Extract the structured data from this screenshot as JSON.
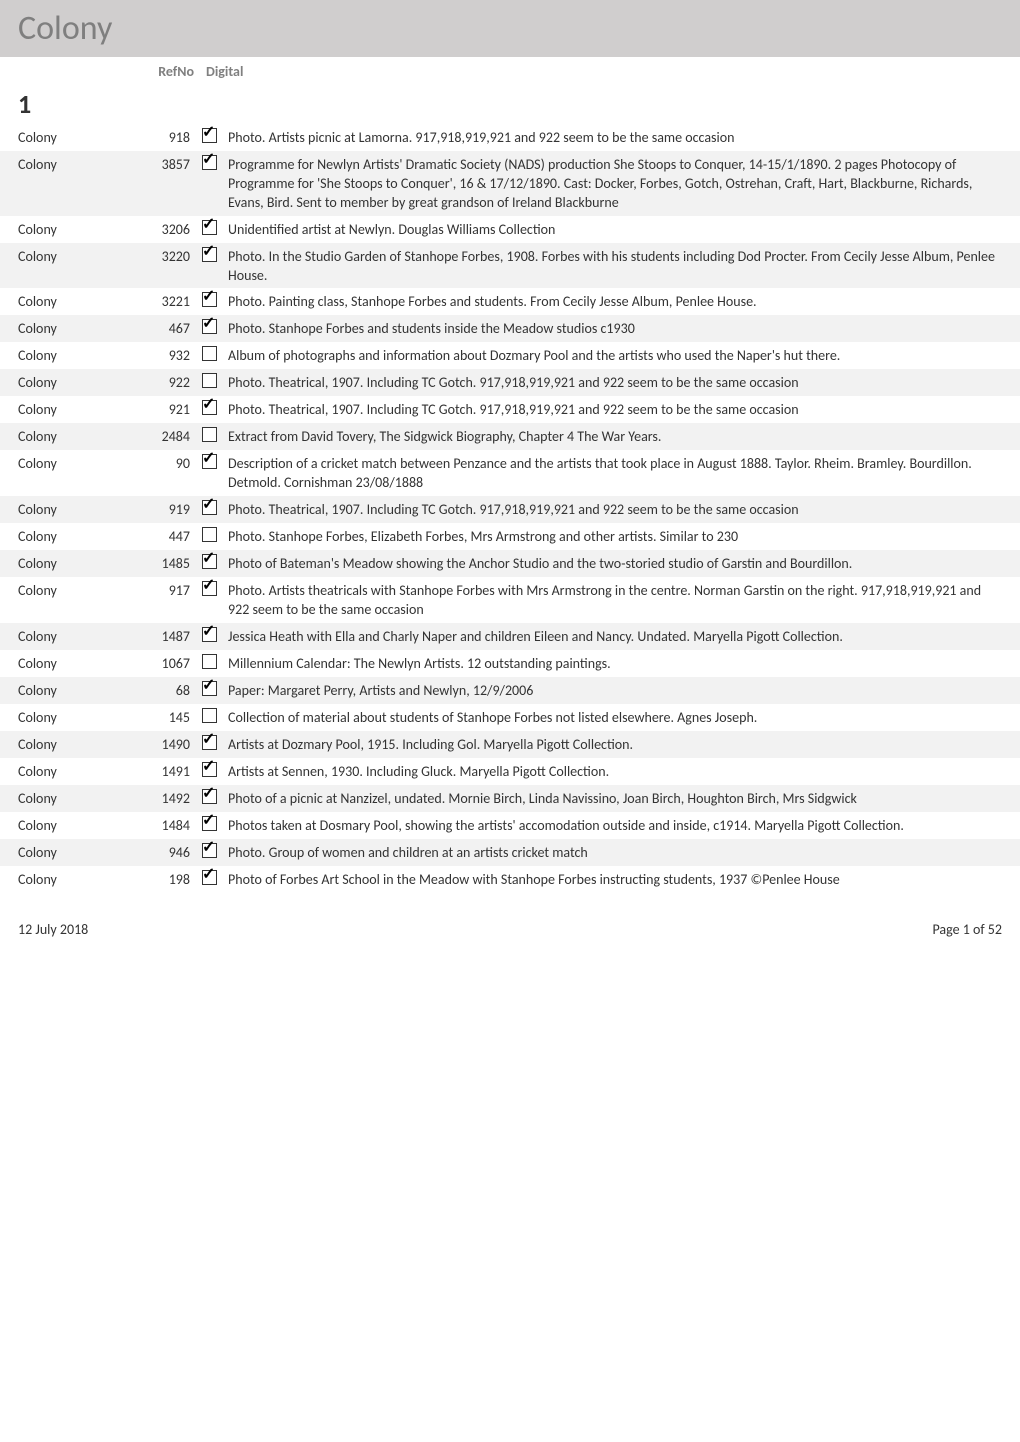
{
  "header": {
    "title": "Colony"
  },
  "columns": {
    "refno": "RefNo",
    "digital": "Digital"
  },
  "section": "1",
  "rows": [
    {
      "label": "Colony",
      "ref": "918",
      "checked": true,
      "alt": false,
      "desc": "Photo. Artists picnic at Lamorna. 917,918,919,921 and 922 seem to be the same occasion"
    },
    {
      "label": "Colony",
      "ref": "3857",
      "checked": true,
      "alt": true,
      "desc": "Programme for Newlyn Artists' Dramatic Society (NADS) production She Stoops to Conquer, 14-15/1/1890. 2 pages Photocopy of Programme for 'She Stoops to Conquer', 16 & 17/12/1890. Cast: Docker, Forbes, Gotch, Ostrehan, Craft, Hart, Blackburne, Richards, Evans, Bird. Sent to member by great grandson of Ireland Blackburne"
    },
    {
      "label": "Colony",
      "ref": "3206",
      "checked": true,
      "alt": false,
      "desc": "Unidentified artist at Newlyn. Douglas Williams Collection"
    },
    {
      "label": "Colony",
      "ref": "3220",
      "checked": true,
      "alt": true,
      "desc": "Photo. In the Studio Garden of Stanhope Forbes, 1908. Forbes with his students including Dod Procter. From Cecily Jesse Album, Penlee House."
    },
    {
      "label": "Colony",
      "ref": "3221",
      "checked": true,
      "alt": false,
      "desc": "Photo. Painting class, Stanhope Forbes and students. From Cecily Jesse Album, Penlee House."
    },
    {
      "label": "Colony",
      "ref": "467",
      "checked": true,
      "alt": true,
      "desc": "Photo. Stanhope Forbes and students inside the Meadow studios c1930"
    },
    {
      "label": "Colony",
      "ref": "932",
      "checked": false,
      "alt": false,
      "desc": "Album of photographs and information about Dozmary Pool and the artists who used the Naper's hut there."
    },
    {
      "label": "Colony",
      "ref": "922",
      "checked": false,
      "alt": true,
      "desc": "Photo. Theatrical, 1907. Including TC Gotch. 917,918,919,921 and 922 seem to be the same occasion"
    },
    {
      "label": "Colony",
      "ref": "921",
      "checked": true,
      "alt": false,
      "desc": "Photo. Theatrical, 1907. Including TC Gotch. 917,918,919,921 and 922 seem to be the same occasion"
    },
    {
      "label": "Colony",
      "ref": "2484",
      "checked": false,
      "alt": true,
      "desc": "Extract from David Tovery, The Sidgwick Biography, Chapter 4 The War Years."
    },
    {
      "label": "Colony",
      "ref": "90",
      "checked": true,
      "alt": false,
      "desc": "Description of a cricket match between Penzance and the artists that took place in August 1888. Taylor. Rheim. Bramley. Bourdillon. Detmold. Cornishman 23/08/1888"
    },
    {
      "label": "Colony",
      "ref": "919",
      "checked": true,
      "alt": true,
      "desc": "Photo. Theatrical, 1907. Including TC Gotch. 917,918,919,921 and 922 seem to be the same occasion"
    },
    {
      "label": "Colony",
      "ref": "447",
      "checked": false,
      "alt": false,
      "desc": "Photo. Stanhope Forbes, Elizabeth Forbes, Mrs Armstrong and other artists. Similar to 230"
    },
    {
      "label": "Colony",
      "ref": "1485",
      "checked": true,
      "alt": true,
      "desc": "Photo of Bateman's Meadow showing the Anchor Studio and the two-storied studio of Garstin and Bourdillon."
    },
    {
      "label": "Colony",
      "ref": "917",
      "checked": true,
      "alt": false,
      "desc": "Photo. Artists theatricals with Stanhope Forbes with Mrs Armstrong in the centre. Norman Garstin on the right. 917,918,919,921 and 922 seem to be the same occasion"
    },
    {
      "label": "Colony",
      "ref": "1487",
      "checked": true,
      "alt": true,
      "desc": "Jessica Heath with Ella and Charly Naper and children Eileen and Nancy. Undated. Maryella Pigott Collection."
    },
    {
      "label": "Colony",
      "ref": "1067",
      "checked": false,
      "alt": false,
      "desc": "Millennium Calendar: The Newlyn Artists. 12 outstanding paintings."
    },
    {
      "label": "Colony",
      "ref": "68",
      "checked": true,
      "alt": true,
      "desc": "Paper: Margaret Perry, Artists and Newlyn, 12/9/2006"
    },
    {
      "label": "Colony",
      "ref": "145",
      "checked": false,
      "alt": false,
      "desc": "Collection of material about students of Stanhope Forbes not listed elsewhere. Agnes Joseph."
    },
    {
      "label": "Colony",
      "ref": "1490",
      "checked": true,
      "alt": true,
      "desc": "Artists at Dozmary Pool, 1915. Including Gol. Maryella Pigott Collection."
    },
    {
      "label": "Colony",
      "ref": "1491",
      "checked": true,
      "alt": false,
      "desc": "Artists at Sennen, 1930. Including Gluck. Maryella Pigott Collection."
    },
    {
      "label": "Colony",
      "ref": "1492",
      "checked": true,
      "alt": true,
      "desc": "Photo of a picnic at Nanzizel, undated. Mornie Birch, Linda Navissino, Joan Birch, Houghton Birch, Mrs Sidgwick"
    },
    {
      "label": "Colony",
      "ref": "1484",
      "checked": true,
      "alt": false,
      "desc": "Photos taken at Dosmary Pool, showing the artists' accomodation outside and inside, c1914. Maryella Pigott Collection."
    },
    {
      "label": "Colony",
      "ref": "946",
      "checked": true,
      "alt": true,
      "desc": "Photo. Group of women and children at an artists cricket match"
    },
    {
      "label": "Colony",
      "ref": "198",
      "checked": true,
      "alt": false,
      "desc": "Photo of Forbes Art School in the Meadow with Stanhope Forbes instructing students, 1937 ©Penlee House"
    }
  ],
  "footer": {
    "left": "12 July 2018",
    "right": "Page 1 of 52"
  }
}
